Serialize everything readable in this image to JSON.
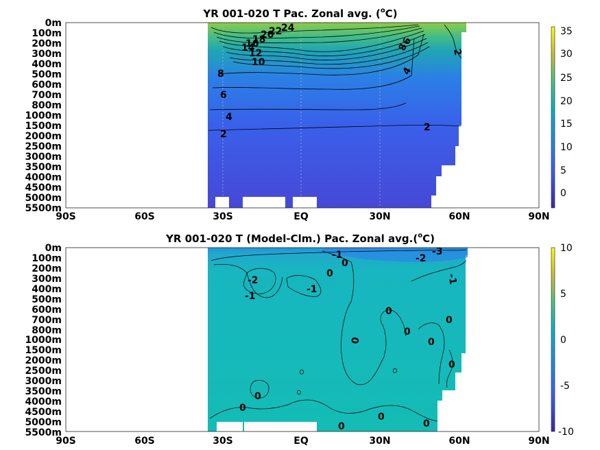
{
  "chart_data": [
    {
      "type": "heatmap",
      "title": "YR 001-020 T Pac. Zonal avg. (",
      "title_sup": "o",
      "title_end": "C)",
      "x_tick_labels": [
        "90S",
        "60S",
        "30S",
        "EQ",
        "30N",
        "60N",
        "90N"
      ],
      "x_ticks": [
        -90,
        -60,
        -30,
        0,
        30,
        60,
        90
      ],
      "xlim": [
        -90,
        90
      ],
      "y_tick_labels": [
        "0m",
        "100m",
        "200m",
        "300m",
        "400m",
        "500m",
        "600m",
        "700m",
        "800m",
        "1000m",
        "1500m",
        "2000m",
        "2500m",
        "3000m",
        "3500m",
        "4000m",
        "4500m",
        "5000m",
        "5500m"
      ],
      "colorbar": {
        "ticks": [
          35,
          30,
          25,
          20,
          15,
          10,
          5,
          0
        ],
        "range": [
          -4,
          36
        ]
      },
      "contour_labels": [
        "24",
        "22",
        "20",
        "18",
        "16",
        "14",
        "12",
        "10",
        "8",
        "6",
        "4",
        "2",
        "8",
        "6",
        "4",
        "2",
        "2"
      ]
    },
    {
      "type": "heatmap",
      "title": "YR 001-020 T (Model-Clm.) Pac. Zonal avg.(",
      "title_sup": "o",
      "title_end": "C)",
      "x_tick_labels": [
        "90S",
        "60S",
        "30S",
        "EQ",
        "30N",
        "60N",
        "90N"
      ],
      "x_ticks": [
        -90,
        -60,
        -30,
        0,
        30,
        60,
        90
      ],
      "xlim": [
        -90,
        90
      ],
      "y_tick_labels": [
        "0m",
        "100m",
        "200m",
        "300m",
        "400m",
        "500m",
        "600m",
        "700m",
        "800m",
        "1000m",
        "1500m",
        "2000m",
        "2500m",
        "3000m",
        "3500m",
        "4000m",
        "4500m",
        "5000m",
        "5500m"
      ],
      "colorbar": {
        "ticks": [
          10,
          5,
          0,
          -5,
          -10
        ],
        "range": [
          -10,
          10
        ]
      },
      "contour_labels": [
        "-1",
        "0",
        "-2",
        "-3",
        "-1",
        "-2",
        "-1",
        "0",
        "-1",
        "0",
        "0",
        "0",
        "0",
        "0",
        "0",
        "0",
        "0",
        "0",
        "0",
        "0",
        "0"
      ]
    }
  ]
}
